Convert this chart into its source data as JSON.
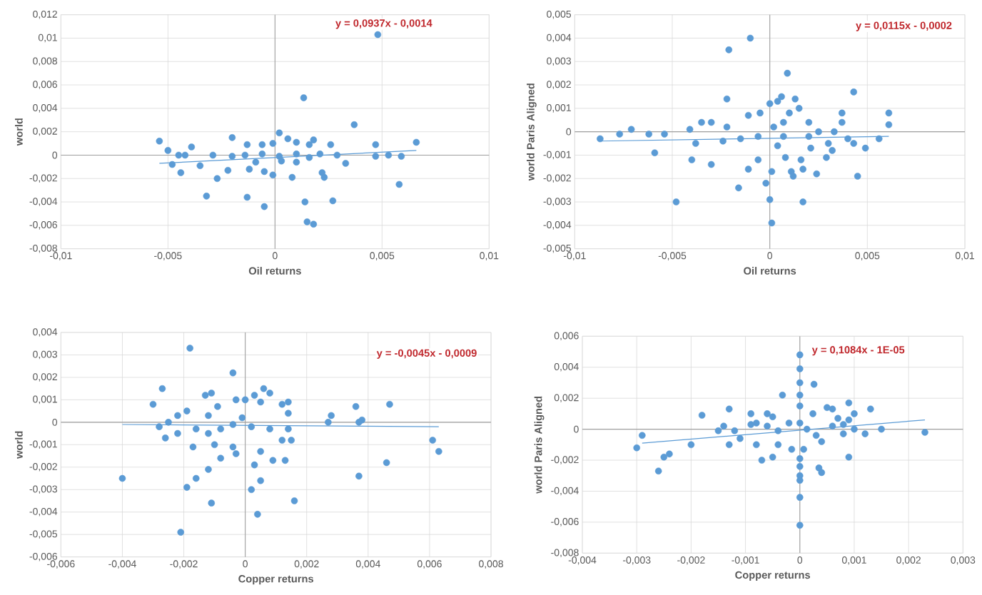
{
  "chart_data": [
    {
      "type": "scatter",
      "xlabel": "Oil returns",
      "ylabel": "world",
      "annotations": [
        "y = 0,0937x - 0,0014"
      ],
      "xlim": [
        -0.01,
        0.01
      ],
      "ylim": [
        -0.008,
        0.012
      ],
      "xticks": [
        {
          "value": -0.01,
          "label": "-0,01"
        },
        {
          "value": -0.005,
          "label": "-0,005"
        },
        0,
        {
          "value": 0.005,
          "label": "0,005"
        },
        {
          "value": 0.01,
          "label": "0,01"
        }
      ],
      "yticks": [
        {
          "value": -0.008,
          "label": "-0,008"
        },
        {
          "value": -0.006,
          "label": "-0,006"
        },
        {
          "value": -0.004,
          "label": "-0,004"
        },
        {
          "value": -0.002,
          "label": "-0,002"
        },
        0,
        {
          "value": 0.002,
          "label": "0,002"
        },
        {
          "value": 0.004,
          "label": "0,004"
        },
        {
          "value": 0.006,
          "label": "0,006"
        },
        {
          "value": 0.008,
          "label": "0,008"
        },
        {
          "value": 0.01,
          "label": "0,01"
        },
        {
          "value": 0.012,
          "label": "0,012"
        }
      ],
      "grid": true,
      "marker": "circle",
      "series": [
        {
          "type": "scatter",
          "color": "#5b9bd5",
          "x": [
            0.0048,
            0.00134,
            0.0037,
            0.0066,
            0.0047,
            -0.0054,
            -0.005,
            -0.0039,
            -0.002,
            0.0002,
            0.0018,
            0.0026,
            0.0006,
            0.001,
            -0.0013,
            -0.0006,
            -0.0001,
            0.0016,
            -0.0045,
            -0.0042,
            -0.0029,
            -0.002,
            -0.0014,
            -0.0006,
            0.0002,
            0.001,
            0.0021,
            0.0029,
            0.0047,
            0.0053,
            0.0059,
            0.0033,
            -0.0048,
            -0.0035,
            -0.0044,
            -0.0022,
            -0.0027,
            -0.0012,
            -0.0005,
            -0.0001,
            0.0008,
            0.0022,
            0.0023,
            0.0058,
            -0.0032,
            -0.0013,
            -0.0005,
            0.0014,
            0.0027,
            0.0015,
            0.0018,
            0.001,
            0.0003,
            -0.0009,
            0.0016
          ],
          "values": [
            0.0103,
            0.0049,
            0.0026,
            0.0011,
            0.0009,
            0.0012,
            0.0004,
            0.0007,
            0.0015,
            0.0019,
            0.0013,
            0.0009,
            0.0014,
            0.0011,
            0.0009,
            0.0009,
            0.001,
            0.0009,
            0.0,
            0.0,
            0.0,
            -0.0001,
            0.0,
            0.0001,
            -0.0001,
            0.0001,
            0.0001,
            0.0,
            -0.0001,
            0.0,
            -0.0001,
            -0.0007,
            -0.0008,
            -0.0009,
            -0.0015,
            -0.0013,
            -0.002,
            -0.0012,
            -0.0014,
            -0.0017,
            -0.0019,
            -0.0015,
            -0.0019,
            -0.0025,
            -0.0035,
            -0.0036,
            -0.0044,
            -0.004,
            -0.0039,
            -0.0057,
            -0.0059,
            -0.0006,
            -0.0005,
            -0.0006,
            -0.0002
          ]
        },
        {
          "type": "line",
          "marker": "none",
          "color": "#5b9bd5",
          "x": [
            -0.0054,
            0.0066
          ],
          "values": [
            -0.0007,
            0.0004
          ]
        }
      ]
    },
    {
      "type": "scatter",
      "xlabel": "Oil returns",
      "ylabel": "world Paris Aligned",
      "annotations": [
        "y = 0,0115x - 0,0002"
      ],
      "xlim": [
        -0.01,
        0.01
      ],
      "ylim": [
        -0.005,
        0.005
      ],
      "xticks": [
        {
          "value": -0.01,
          "label": "-0,01"
        },
        {
          "value": -0.005,
          "label": "-0,005"
        },
        0,
        {
          "value": 0.005,
          "label": "0,005"
        },
        {
          "value": 0.01,
          "label": "0,01"
        }
      ],
      "yticks": [
        {
          "value": -0.005,
          "label": "-0,005"
        },
        {
          "value": -0.004,
          "label": "-0,004"
        },
        {
          "value": -0.003,
          "label": "-0,003"
        },
        {
          "value": -0.002,
          "label": "-0,002"
        },
        {
          "value": -0.001,
          "label": "-0,001"
        },
        0,
        {
          "value": 0.001,
          "label": "0,001"
        },
        {
          "value": 0.002,
          "label": "0,002"
        },
        {
          "value": 0.003,
          "label": "0,003"
        },
        {
          "value": 0.004,
          "label": "0,004"
        },
        {
          "value": 0.005,
          "label": "0,005"
        }
      ],
      "grid": true,
      "marker": "circle",
      "series": [
        {
          "type": "scatter",
          "color": "#5b9bd5",
          "x": [
            -0.0087,
            -0.0077,
            -0.0071,
            -0.0062,
            -0.0054,
            -0.0059,
            -0.0048,
            -0.0041,
            -0.004,
            -0.0035,
            -0.003,
            -0.003,
            -0.0038,
            -0.0024,
            -0.0022,
            -0.0022,
            -0.0021,
            -0.001,
            -0.0016,
            -0.0011,
            -0.0011,
            -0.0006,
            -0.0005,
            -0.0002,
            0.0,
            0.0001,
            0.0001,
            0.0,
            0.0004,
            0.0006,
            0.0009,
            0.0013,
            0.0015,
            0.001,
            0.0007,
            0.0002,
            0.0007,
            0.0004,
            0.0008,
            0.0011,
            0.0012,
            0.0017,
            0.0016,
            0.0017,
            0.002,
            0.0021,
            0.0024,
            0.0025,
            0.0029,
            0.003,
            0.0032,
            0.0033,
            0.0037,
            0.0037,
            0.004,
            0.0043,
            0.0043,
            0.0045,
            0.0049,
            0.0056,
            0.0061,
            0.0061,
            0.002,
            -0.0006,
            -0.0015
          ],
          "values": [
            -0.0003,
            -0.0001,
            0.0001,
            -0.0001,
            -0.0001,
            -0.0009,
            -0.003,
            0.0001,
            -0.0012,
            0.0004,
            0.0004,
            -0.0014,
            -0.0005,
            -0.0004,
            0.0002,
            0.0014,
            0.0035,
            0.004,
            -0.0024,
            0.0007,
            -0.0016,
            -0.0012,
            0.0008,
            -0.0022,
            -0.0029,
            -0.0039,
            -0.0017,
            0.0012,
            0.0013,
            0.0015,
            0.0025,
            0.0014,
            0.001,
            0.0008,
            0.0004,
            0.0002,
            -0.0002,
            -0.0006,
            -0.0011,
            -0.0017,
            -0.0019,
            -0.0016,
            -0.0012,
            -0.003,
            0.0004,
            -0.0007,
            -0.0018,
            0.0,
            -0.0011,
            -0.0005,
            -0.0008,
            0.0,
            0.0004,
            0.0008,
            -0.0003,
            0.0017,
            -0.0005,
            -0.0019,
            -0.0007,
            -0.0003,
            0.0008,
            0.0003,
            -0.0002,
            -0.0002,
            -0.0003
          ]
        },
        {
          "type": "line",
          "marker": "none",
          "color": "#5b9bd5",
          "x": [
            -0.0087,
            0.0061
          ],
          "values": [
            -0.0004,
            -0.0002
          ]
        }
      ]
    },
    {
      "type": "scatter",
      "xlabel": "Copper returns",
      "ylabel": "world",
      "annotations": [
        "y = -0,0045x - 0,0009"
      ],
      "xlim": [
        -0.006,
        0.008
      ],
      "ylim": [
        -0.006,
        0.004
      ],
      "xticks": [
        {
          "value": -0.006,
          "label": "-0,006"
        },
        {
          "value": -0.004,
          "label": "-0,004"
        },
        {
          "value": -0.002,
          "label": "-0,002"
        },
        0,
        {
          "value": 0.002,
          "label": "0,002"
        },
        {
          "value": 0.004,
          "label": "0,004"
        },
        {
          "value": 0.006,
          "label": "0,006"
        },
        {
          "value": 0.008,
          "label": "0,008"
        }
      ],
      "yticks": [
        {
          "value": -0.006,
          "label": "-0,006"
        },
        {
          "value": -0.005,
          "label": "-0,005"
        },
        {
          "value": -0.004,
          "label": "-0,004"
        },
        {
          "value": -0.003,
          "label": "-0,003"
        },
        {
          "value": -0.002,
          "label": "-0,002"
        },
        {
          "value": -0.001,
          "label": "-0,001"
        },
        0,
        {
          "value": 0.001,
          "label": "0,001"
        },
        {
          "value": 0.002,
          "label": "0,002"
        },
        {
          "value": 0.003,
          "label": "0,003"
        },
        {
          "value": 0.004,
          "label": "0,004"
        }
      ],
      "grid": true,
      "marker": "circle",
      "series": [
        {
          "type": "scatter",
          "color": "#5b9bd5",
          "x": [
            -0.0018,
            -0.0004,
            -0.0027,
            -0.003,
            -0.0013,
            -0.0011,
            0.0006,
            0.0008,
            0.0003,
            0.0014,
            0.0012,
            -0.0003,
            0.0,
            0.0005,
            -0.0019,
            -0.0009,
            -0.0012,
            0.0036,
            0.0047,
            0.0028,
            0.0027,
            0.0038,
            0.0037,
            0.0014,
            -0.0028,
            -0.0025,
            -0.0022,
            -0.0016,
            -0.0012,
            -0.0008,
            -0.0004,
            -0.0001,
            0.0002,
            0.0008,
            0.0012,
            0.0014,
            0.0015,
            -0.0026,
            -0.0022,
            -0.0017,
            -0.001,
            -0.0004,
            -0.0003,
            0.0005,
            -0.0008,
            0.0009,
            0.0013,
            0.0003,
            -0.0012,
            -0.0016,
            -0.004,
            -0.0019,
            0.0002,
            0.0005,
            -0.0011,
            0.0016,
            0.0004,
            -0.0021,
            0.0046,
            0.0037,
            0.0061,
            0.0063
          ],
          "values": [
            0.0033,
            0.0022,
            0.0015,
            0.0008,
            0.0012,
            0.0013,
            0.0015,
            0.0013,
            0.0012,
            0.0009,
            0.0008,
            0.001,
            0.001,
            0.0009,
            0.0005,
            0.0007,
            0.0003,
            0.0007,
            0.0008,
            0.0003,
            0.0,
            0.0001,
            0.0,
            0.0004,
            -0.0002,
            0.0,
            0.0003,
            -0.0003,
            -0.0005,
            -0.0003,
            -0.0001,
            0.0002,
            -0.0002,
            -0.0003,
            -0.0008,
            -0.0003,
            -0.0008,
            -0.0007,
            -0.0005,
            -0.0011,
            -0.001,
            -0.0011,
            -0.0014,
            -0.0013,
            -0.0016,
            -0.0017,
            -0.0017,
            -0.0019,
            -0.0021,
            -0.0025,
            -0.0025,
            -0.0029,
            -0.003,
            -0.0026,
            -0.0036,
            -0.0035,
            -0.0041,
            -0.0049,
            -0.0018,
            -0.0024,
            -0.0008,
            -0.0013
          ]
        },
        {
          "type": "line",
          "marker": "none",
          "color": "#5b9bd5",
          "x": [
            -0.004,
            0.0063
          ],
          "values": [
            -0.0001,
            -0.0002
          ]
        }
      ]
    },
    {
      "type": "scatter",
      "xlabel": "Copper returns",
      "ylabel": "world Paris Aligned",
      "annotations": [
        "y = 0,1084x - 1E-05"
      ],
      "xlim": [
        -0.004,
        0.003
      ],
      "ylim": [
        -0.008,
        0.006
      ],
      "xticks": [
        {
          "value": -0.004,
          "label": "-0,004"
        },
        {
          "value": -0.003,
          "label": "-0,003"
        },
        {
          "value": -0.002,
          "label": "-0,002"
        },
        {
          "value": -0.001,
          "label": "-0,001"
        },
        0,
        {
          "value": 0.001,
          "label": "0,001"
        },
        {
          "value": 0.002,
          "label": "0,002"
        },
        {
          "value": 0.003,
          "label": "0,003"
        }
      ],
      "yticks": [
        {
          "value": -0.008,
          "label": "-0,008"
        },
        {
          "value": -0.006,
          "label": "-0,006"
        },
        {
          "value": -0.004,
          "label": "-0,004"
        },
        {
          "value": -0.002,
          "label": "-0,002"
        },
        0,
        {
          "value": 0.002,
          "label": "0,002"
        },
        {
          "value": 0.004,
          "label": "0,004"
        },
        {
          "value": 0.006,
          "label": "0,006"
        }
      ],
      "grid": true,
      "marker": "circle",
      "series": [
        {
          "type": "scatter",
          "color": "#5b9bd5",
          "x": [
            0.0,
            0.0,
            0.0,
            0.00026,
            -0.00032,
            0.0,
            0.0,
            0.0009,
            0.0013,
            -0.0013,
            -0.0018,
            -0.0009,
            0.0005,
            0.0006,
            -0.0006,
            -0.0005,
            0.00024,
            0.001,
            0.0009,
            0.0007,
            -0.0009,
            -0.0014,
            -0.0015,
            -0.0012,
            -0.0011,
            -0.0008,
            -0.0006,
            -0.0004,
            -0.0002,
            0.0,
            0.00013,
            0.0003,
            0.0004,
            0.0006,
            0.0008,
            0.001,
            0.0012,
            0.0015,
            0.0023,
            0.0008,
            -0.0029,
            -0.003,
            -0.0026,
            -0.0025,
            -0.0024,
            -0.002,
            -0.0013,
            -0.0008,
            -0.0007,
            -0.0005,
            -0.0004,
            -0.00015,
            7e-05,
            0.0,
            0.0,
            0.0,
            0.0,
            0.0,
            0.0,
            0.00035,
            0.0004,
            0.0009
          ],
          "values": [
            0.0048,
            0.0039,
            0.003,
            0.0029,
            0.0022,
            0.0022,
            0.0015,
            0.0017,
            0.0013,
            0.0013,
            0.0009,
            0.001,
            0.0014,
            0.0013,
            0.001,
            0.0008,
            0.001,
            0.001,
            0.0006,
            0.0007,
            0.0003,
            0.0002,
            -0.0001,
            -0.0001,
            -0.0006,
            0.0004,
            0.0002,
            -0.0001,
            0.0004,
            0.0004,
            0.0,
            -0.0004,
            -0.0008,
            0.0002,
            0.0003,
            0.0,
            -0.0003,
            0.0,
            -0.0002,
            -0.0003,
            -0.0004,
            -0.0012,
            -0.0027,
            -0.0018,
            -0.0016,
            -0.001,
            -0.001,
            -0.001,
            -0.002,
            -0.0018,
            -0.001,
            -0.0013,
            -0.0013,
            -0.0019,
            -0.0024,
            -0.003,
            -0.0033,
            -0.0044,
            -0.0062,
            -0.0025,
            -0.0028,
            -0.0018
          ]
        },
        {
          "type": "line",
          "marker": "none",
          "color": "#5b9bd5",
          "x": [
            -0.0029,
            0.0023
          ],
          "values": [
            -0.0009,
            0.0006
          ]
        }
      ]
    }
  ]
}
